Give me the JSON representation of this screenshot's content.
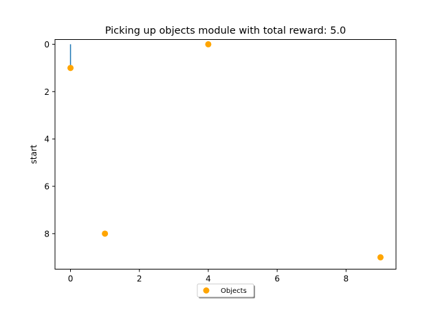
{
  "chart_data": {
    "type": "scatter",
    "title": "Picking up objects module with total reward: 5.0",
    "xlabel": "",
    "ylabel": "start",
    "xlim": [
      -0.45,
      9.45
    ],
    "ylim": [
      -0.2,
      9.5
    ],
    "y_inverted": true,
    "x_ticks": [
      0,
      2,
      4,
      6,
      8
    ],
    "y_ticks": [
      0,
      2,
      4,
      6,
      8
    ],
    "grid": false,
    "legend_position": "below-center",
    "series": [
      {
        "name": "Objects",
        "kind": "scatter",
        "color": "#ffa500",
        "points": [
          {
            "x": 0,
            "y": 1
          },
          {
            "x": 4,
            "y": 0
          },
          {
            "x": 1,
            "y": 8
          },
          {
            "x": 9,
            "y": 9
          }
        ]
      },
      {
        "kind": "line",
        "color": "#1f77b4",
        "points": [
          {
            "x": 0,
            "y": 0
          },
          {
            "x": 0,
            "y": 1
          }
        ]
      }
    ]
  }
}
